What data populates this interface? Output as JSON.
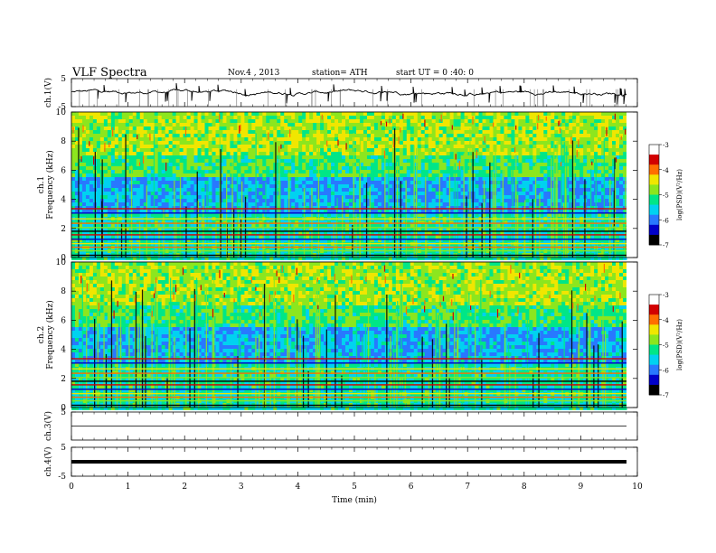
{
  "header": {
    "title": "VLF  Spectra",
    "date": "Nov.4  , 2013",
    "station": "station= ATH",
    "start": "start  UT  =   0 :40: 0"
  },
  "chart_data": [
    {
      "type": "line",
      "panel": "ch1-waveform",
      "ylabel": "ch.1(V)",
      "ylim": [
        -5,
        5
      ],
      "yticks": [
        "5",
        "-5"
      ],
      "baseline": 0.2,
      "amplitude": 0.6,
      "color": "#000000"
    },
    {
      "type": "heatmap",
      "panel": "ch1-spectrogram",
      "ylabel_top": "ch.1",
      "ylabel": "Frequency  (kHz)",
      "ylim": [
        0,
        10
      ],
      "yticks": [
        "0",
        "2",
        "4",
        "6",
        "8",
        "10"
      ],
      "colorbar": {
        "label": "log(PSD)(V²/Hz)",
        "range": [
          -7,
          -3
        ],
        "ticks": [
          "-3",
          "-4",
          "-5",
          "-6",
          "-7"
        ]
      }
    },
    {
      "type": "heatmap",
      "panel": "ch2-spectrogram",
      "ylabel_top": "ch.2",
      "ylabel": "Frequency  (kHz)",
      "ylim": [
        0,
        10
      ],
      "yticks": [
        "0",
        "2",
        "4",
        "6",
        "8",
        "10"
      ],
      "colorbar": {
        "label": "log(PSD)(V²/Hz)",
        "range": [
          -7,
          -3
        ],
        "ticks": [
          "-3",
          "-4",
          "-5",
          "-6",
          "-7"
        ]
      }
    },
    {
      "type": "line",
      "panel": "ch3-waveform",
      "ylabel": "ch.3(V)",
      "ylim": [
        -5,
        5
      ],
      "yticks": [
        "5"
      ],
      "baseline": 0.0,
      "color": "#000000"
    },
    {
      "type": "line",
      "panel": "ch4-waveform",
      "ylabel": "ch.4(V)",
      "ylim": [
        -5,
        5
      ],
      "yticks": [
        "5",
        "-5"
      ],
      "baseline": 0.0,
      "color": "#000000"
    }
  ],
  "xaxis": {
    "label": "Time  (min)",
    "range": [
      0,
      10
    ],
    "ticks": [
      "0",
      "1",
      "2",
      "3",
      "4",
      "5",
      "6",
      "7",
      "8",
      "9",
      "10"
    ],
    "data_end": 9.83
  },
  "colormap": [
    "#000000",
    "#0000c8",
    "#2878ff",
    "#00d2f0",
    "#00e687",
    "#8ce61e",
    "#f0e600",
    "#ff6e00",
    "#d20000",
    "#ffffff"
  ]
}
